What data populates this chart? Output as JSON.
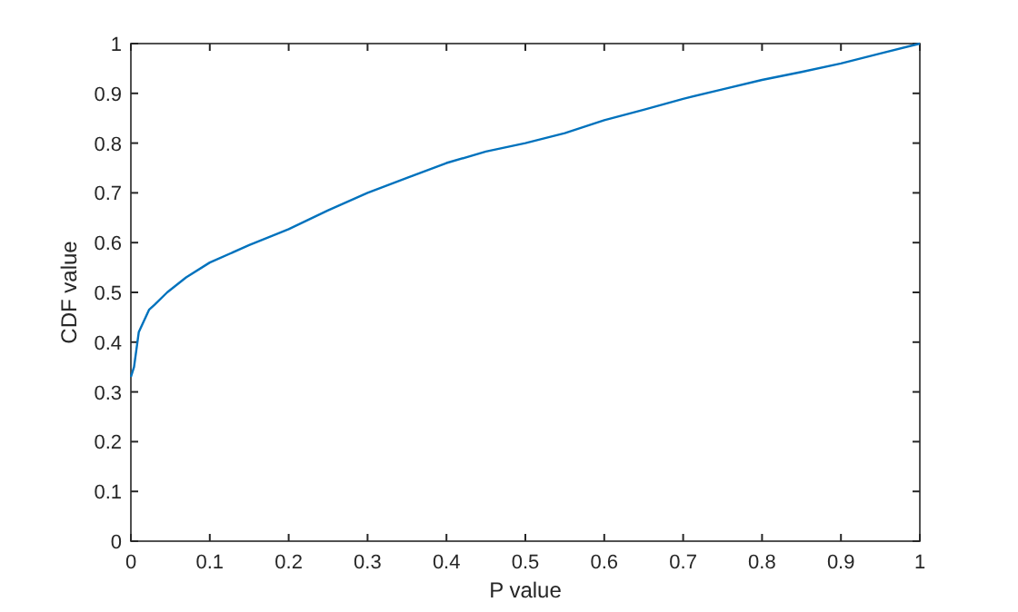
{
  "chart_data": {
    "type": "line",
    "xlabel": "P value",
    "ylabel": "CDF value",
    "xlim": [
      0,
      1
    ],
    "ylim": [
      0,
      1
    ],
    "xticks": [
      0,
      0.1,
      0.2,
      0.3,
      0.4,
      0.5,
      0.6,
      0.7,
      0.8,
      0.9,
      1
    ],
    "yticks": [
      0,
      0.1,
      0.2,
      0.3,
      0.4,
      0.5,
      0.6,
      0.7,
      0.8,
      0.9,
      1
    ],
    "grid": false,
    "series": [
      {
        "color": "#0072bd",
        "x": [
          0,
          0.004,
          0.01,
          0.023,
          0.03,
          0.046,
          0.07,
          0.1,
          0.15,
          0.2,
          0.25,
          0.3,
          0.35,
          0.4,
          0.45,
          0.5,
          0.55,
          0.6,
          0.65,
          0.7,
          0.75,
          0.8,
          0.85,
          0.9,
          0.95,
          1
        ],
        "values": [
          0.33,
          0.35,
          0.42,
          0.465,
          0.475,
          0.5,
          0.53,
          0.56,
          0.595,
          0.627,
          0.665,
          0.7,
          0.73,
          0.76,
          0.783,
          0.8,
          0.82,
          0.846,
          0.867,
          0.889,
          0.908,
          0.927,
          0.943,
          0.96,
          0.98,
          1
        ]
      }
    ]
  }
}
